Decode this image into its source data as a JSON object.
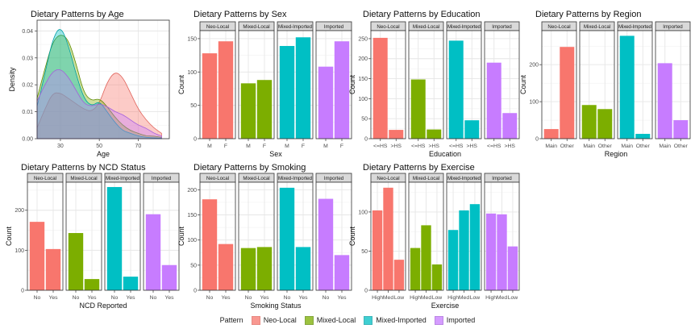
{
  "palette": {
    "Neo-Local": "#F8766D",
    "Mixed-Local": "#7CAE00",
    "Mixed-Imported": "#00BFC4",
    "Imported": "#C77CFF"
  },
  "palette_dark": {
    "Neo-Local": "#e0635a",
    "Mixed-Local": "#5d8a00",
    "Mixed-Imported": "#009ea3",
    "Imported": "#a55fdc"
  },
  "legend": {
    "title": "Pattern",
    "items": [
      "Neo-Local",
      "Mixed-Local",
      "Mixed-Imported",
      "Imported"
    ]
  },
  "chart_data": [
    {
      "type": "area",
      "title": "Dietary Patterns by Age",
      "xlabel": "Age",
      "ylabel": "Density",
      "xlim": [
        18,
        86
      ],
      "ylim": [
        0,
        0.044
      ],
      "xticks": [
        30,
        50,
        70
      ],
      "yticks": [
        0,
        0.01,
        0.02,
        0.03,
        0.04
      ],
      "ytick_labels": [
        "0.00",
        "0.01",
        "0.02",
        "0.03",
        "0.04"
      ],
      "x": [
        18,
        22,
        26,
        30,
        34,
        38,
        42,
        46,
        50,
        54,
        58,
        62,
        66,
        70,
        74,
        78,
        82
      ],
      "series": [
        {
          "name": "Neo-Local",
          "values": [
            0.004,
            0.011,
            0.017,
            0.017,
            0.015,
            0.013,
            0.011,
            0.01,
            0.013,
            0.021,
            0.025,
            0.023,
            0.017,
            0.011,
            0.007,
            0.004,
            0.002
          ]
        },
        {
          "name": "Mixed-Local",
          "values": [
            0.015,
            0.026,
            0.036,
            0.039,
            0.037,
            0.028,
            0.017,
            0.014,
            0.015,
            0.012,
            0.008,
            0.005,
            0.003,
            0.002,
            0.001,
            0.001,
            0.0005
          ]
        },
        {
          "name": "Mixed-Imported",
          "values": [
            0.012,
            0.024,
            0.037,
            0.042,
            0.035,
            0.024,
            0.015,
            0.012,
            0.014,
            0.01,
            0.006,
            0.003,
            0.002,
            0.001,
            0.0005,
            0.0003,
            0.0002
          ]
        },
        {
          "name": "Imported",
          "values": [
            0.014,
            0.02,
            0.025,
            0.026,
            0.023,
            0.018,
            0.013,
            0.012,
            0.013,
            0.012,
            0.01,
            0.009,
            0.007,
            0.005,
            0.004,
            0.002,
            0.001
          ]
        }
      ]
    },
    {
      "type": "bar",
      "title": "Dietary Patterns by Sex",
      "xlabel": "Sex",
      "ylabel": "Count",
      "ylim": [
        0,
        162
      ],
      "yticks": [
        0,
        50,
        100,
        150
      ],
      "facets": [
        {
          "name": "Neo-Local",
          "categories": [
            "M",
            "F"
          ],
          "values": [
            128,
            146
          ]
        },
        {
          "name": "Mixed-Local",
          "categories": [
            "M",
            "F"
          ],
          "values": [
            83,
            88
          ]
        },
        {
          "name": "Mixed-Imported",
          "categories": [
            "M",
            "F"
          ],
          "values": [
            139,
            152
          ]
        },
        {
          "name": "Imported",
          "categories": [
            "M",
            "F"
          ],
          "values": [
            108,
            146
          ]
        }
      ]
    },
    {
      "type": "bar",
      "title": "Dietary Patterns by Education",
      "xlabel": "Education",
      "ylabel": "Count",
      "ylim": [
        0,
        270
      ],
      "yticks": [
        0,
        50,
        100,
        150,
        200,
        250
      ],
      "facets": [
        {
          "name": "Neo-Local",
          "categories": [
            "<=HS",
            ">HS"
          ],
          "values": [
            252,
            22
          ]
        },
        {
          "name": "Mixed-Local",
          "categories": [
            "<=HS",
            ">HS"
          ],
          "values": [
            148,
            23
          ]
        },
        {
          "name": "Mixed-Imported",
          "categories": [
            "<=HS",
            ">HS"
          ],
          "values": [
            245,
            46
          ]
        },
        {
          "name": "Imported",
          "categories": [
            "<=HS",
            ">HS"
          ],
          "values": [
            190,
            64
          ]
        }
      ]
    },
    {
      "type": "bar",
      "title": "Dietary Patterns by Region",
      "xlabel": "Region",
      "ylabel": "Count",
      "ylim": [
        0,
        292
      ],
      "yticks": [
        0,
        100,
        200
      ],
      "facets": [
        {
          "name": "Neo-Local",
          "categories": [
            "Main",
            "Other"
          ],
          "values": [
            26,
            248
          ]
        },
        {
          "name": "Mixed-Local",
          "categories": [
            "Main",
            "Other"
          ],
          "values": [
            91,
            80
          ]
        },
        {
          "name": "Mixed-Imported",
          "categories": [
            "Main",
            "Other"
          ],
          "values": [
            278,
            13
          ]
        },
        {
          "name": "Imported",
          "categories": [
            "Main",
            "Other"
          ],
          "values": [
            204,
            50
          ]
        }
      ]
    },
    {
      "type": "bar",
      "title": "Dietary Patterns by NCD Status",
      "xlabel": "NCD Reported",
      "ylabel": "Count",
      "ylim": [
        0,
        270
      ],
      "yticks": [
        0,
        100,
        200
      ],
      "facets": [
        {
          "name": "Neo-Local",
          "categories": [
            "No",
            "Yes"
          ],
          "values": [
            171,
            103
          ]
        },
        {
          "name": "Mixed-Local",
          "categories": [
            "No",
            "Yes"
          ],
          "values": [
            143,
            28
          ]
        },
        {
          "name": "Mixed-Imported",
          "categories": [
            "No",
            "Yes"
          ],
          "values": [
            258,
            34
          ]
        },
        {
          "name": "Imported",
          "categories": [
            "No",
            "Yes"
          ],
          "values": [
            190,
            63
          ]
        }
      ]
    },
    {
      "type": "bar",
      "title": "Dietary Patterns by Smoking",
      "xlabel": "Smoking Status",
      "ylabel": "Count",
      "ylim": [
        0,
        215
      ],
      "yticks": [
        0,
        50,
        100,
        150,
        200
      ],
      "facets": [
        {
          "name": "Neo-Local",
          "categories": [
            "No",
            "Yes"
          ],
          "values": [
            181,
            92
          ]
        },
        {
          "name": "Mixed-Local",
          "categories": [
            "No",
            "Yes"
          ],
          "values": [
            84,
            86
          ]
        },
        {
          "name": "Mixed-Imported",
          "categories": [
            "No",
            "Yes"
          ],
          "values": [
            204,
            86
          ]
        },
        {
          "name": "Imported",
          "categories": [
            "No",
            "Yes"
          ],
          "values": [
            182,
            70
          ]
        }
      ]
    },
    {
      "type": "bar",
      "title": "Dietary Patterns by Exercise",
      "xlabel": "Exercise",
      "ylabel": "Count",
      "ylim": [
        0,
        138
      ],
      "yticks": [
        0,
        50,
        100
      ],
      "facets": [
        {
          "name": "Neo-Local",
          "categories": [
            "High",
            "Med",
            "Low"
          ],
          "values": [
            102,
            131,
            39
          ]
        },
        {
          "name": "Mixed-Local",
          "categories": [
            "High",
            "Med",
            "Low"
          ],
          "values": [
            54,
            83,
            33
          ]
        },
        {
          "name": "Mixed-Imported",
          "categories": [
            "High",
            "Med",
            "Low"
          ],
          "values": [
            77,
            102,
            110
          ]
        },
        {
          "name": "Imported",
          "categories": [
            "High",
            "Med",
            "Low"
          ],
          "values": [
            98,
            97,
            56
          ]
        }
      ]
    }
  ]
}
